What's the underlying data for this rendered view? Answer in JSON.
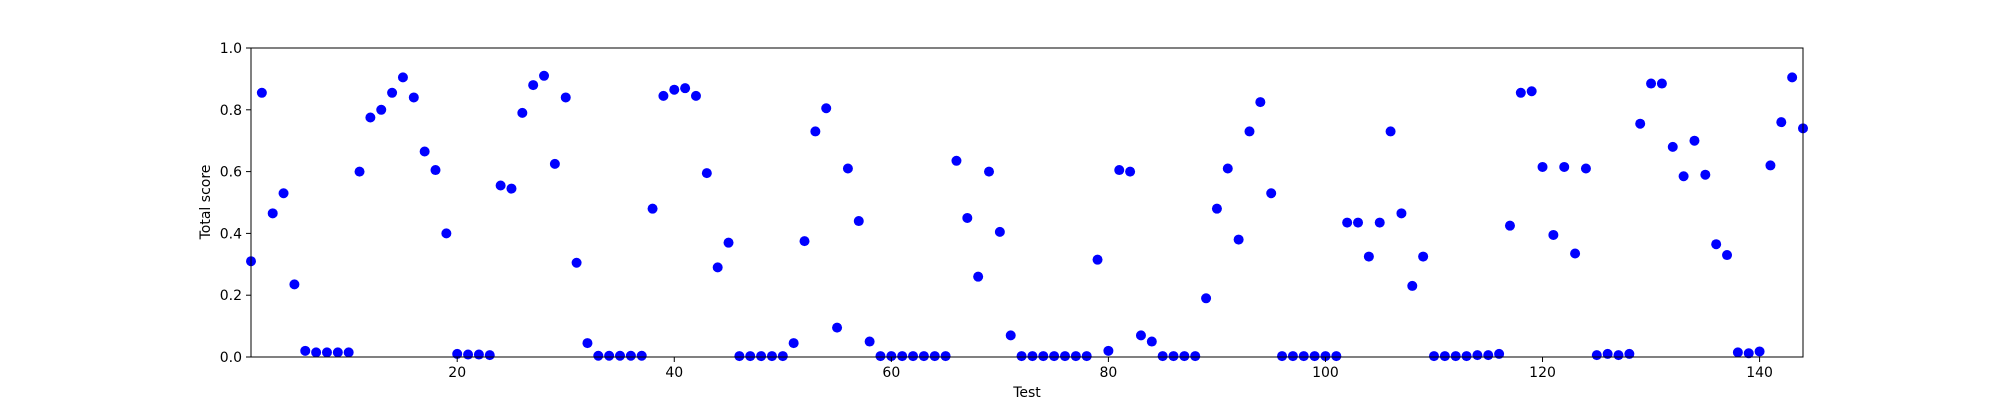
{
  "chart_data": {
    "type": "scatter",
    "title": "",
    "xlabel": "Test",
    "ylabel": "Total score",
    "xlim": [
      1,
      144
    ],
    "ylim": [
      0.0,
      1.0
    ],
    "grid": false,
    "legend": "none",
    "marker_color": "#0000ff",
    "x_ticks": [
      20,
      40,
      60,
      80,
      100,
      120,
      140
    ],
    "y_ticks": [
      0.0,
      0.2,
      0.4,
      0.6,
      0.8,
      1.0
    ],
    "x_tick_labels": [
      "20",
      "40",
      "60",
      "80",
      "100",
      "120",
      "140"
    ],
    "y_tick_labels": [
      "0.0",
      "0.2",
      "0.4",
      "0.6",
      "0.8",
      "1.0"
    ],
    "series": [
      {
        "x": [
          1,
          2,
          3,
          4,
          5,
          6,
          7,
          8,
          9,
          10,
          11,
          12,
          13,
          14,
          15,
          16,
          17,
          18,
          19,
          20,
          21,
          22,
          23,
          24,
          25,
          26,
          27,
          28,
          29,
          30,
          31,
          32,
          33,
          34,
          35,
          36,
          37,
          38,
          39,
          40,
          41,
          42,
          43,
          44,
          45,
          46,
          47,
          48,
          49,
          50,
          51,
          52,
          53,
          54,
          55,
          56,
          57,
          58,
          59,
          60,
          61,
          62,
          63,
          64,
          65,
          66,
          67,
          68,
          69,
          70,
          71,
          72,
          73,
          74,
          75,
          76,
          77,
          78,
          79,
          80,
          81,
          82,
          83,
          84,
          85,
          86,
          87,
          88,
          89,
          90,
          91,
          92,
          93,
          94,
          95,
          96,
          97,
          98,
          99,
          100,
          101,
          102,
          103,
          104,
          105,
          106,
          107,
          108,
          109,
          110,
          111,
          112,
          113,
          114,
          115,
          116,
          117,
          118,
          119,
          120,
          121,
          122,
          123,
          124,
          125,
          126,
          127,
          128,
          129,
          130,
          131,
          132,
          133,
          134,
          135,
          136,
          137,
          138,
          139,
          140,
          141,
          142,
          143,
          144
        ],
        "y": [
          0.31,
          0.855,
          0.465,
          0.53,
          0.235,
          0.02,
          0.015,
          0.015,
          0.015,
          0.015,
          0.6,
          0.775,
          0.8,
          0.855,
          0.905,
          0.84,
          0.665,
          0.605,
          0.4,
          0.01,
          0.008,
          0.008,
          0.006,
          0.555,
          0.545,
          0.79,
          0.88,
          0.91,
          0.625,
          0.84,
          0.305,
          0.045,
          0.004,
          0.004,
          0.004,
          0.004,
          0.004,
          0.48,
          0.845,
          0.865,
          0.87,
          0.845,
          0.595,
          0.29,
          0.37,
          0.003,
          0.003,
          0.003,
          0.003,
          0.003,
          0.045,
          0.375,
          0.73,
          0.805,
          0.095,
          0.61,
          0.44,
          0.05,
          0.003,
          0.003,
          0.003,
          0.003,
          0.003,
          0.003,
          0.003,
          0.635,
          0.45,
          0.26,
          0.6,
          0.405,
          0.07,
          0.003,
          0.003,
          0.003,
          0.003,
          0.003,
          0.003,
          0.003,
          0.315,
          0.02,
          0.605,
          0.6,
          0.07,
          0.05,
          0.003,
          0.003,
          0.003,
          0.003,
          0.19,
          0.48,
          0.61,
          0.38,
          0.73,
          0.825,
          0.53,
          0.003,
          0.003,
          0.003,
          0.003,
          0.003,
          0.003,
          0.435,
          0.435,
          0.325,
          0.435,
          0.73,
          0.465,
          0.23,
          0.325,
          0.003,
          0.003,
          0.003,
          0.003,
          0.006,
          0.006,
          0.01,
          0.425,
          0.855,
          0.86,
          0.615,
          0.395,
          0.615,
          0.335,
          0.61,
          0.006,
          0.01,
          0.006,
          0.01,
          0.755,
          0.885,
          0.885,
          0.68,
          0.585,
          0.7,
          0.59,
          0.365,
          0.33,
          0.015,
          0.012,
          0.018,
          0.62,
          0.76,
          0.905,
          0.74
        ]
      }
    ]
  }
}
